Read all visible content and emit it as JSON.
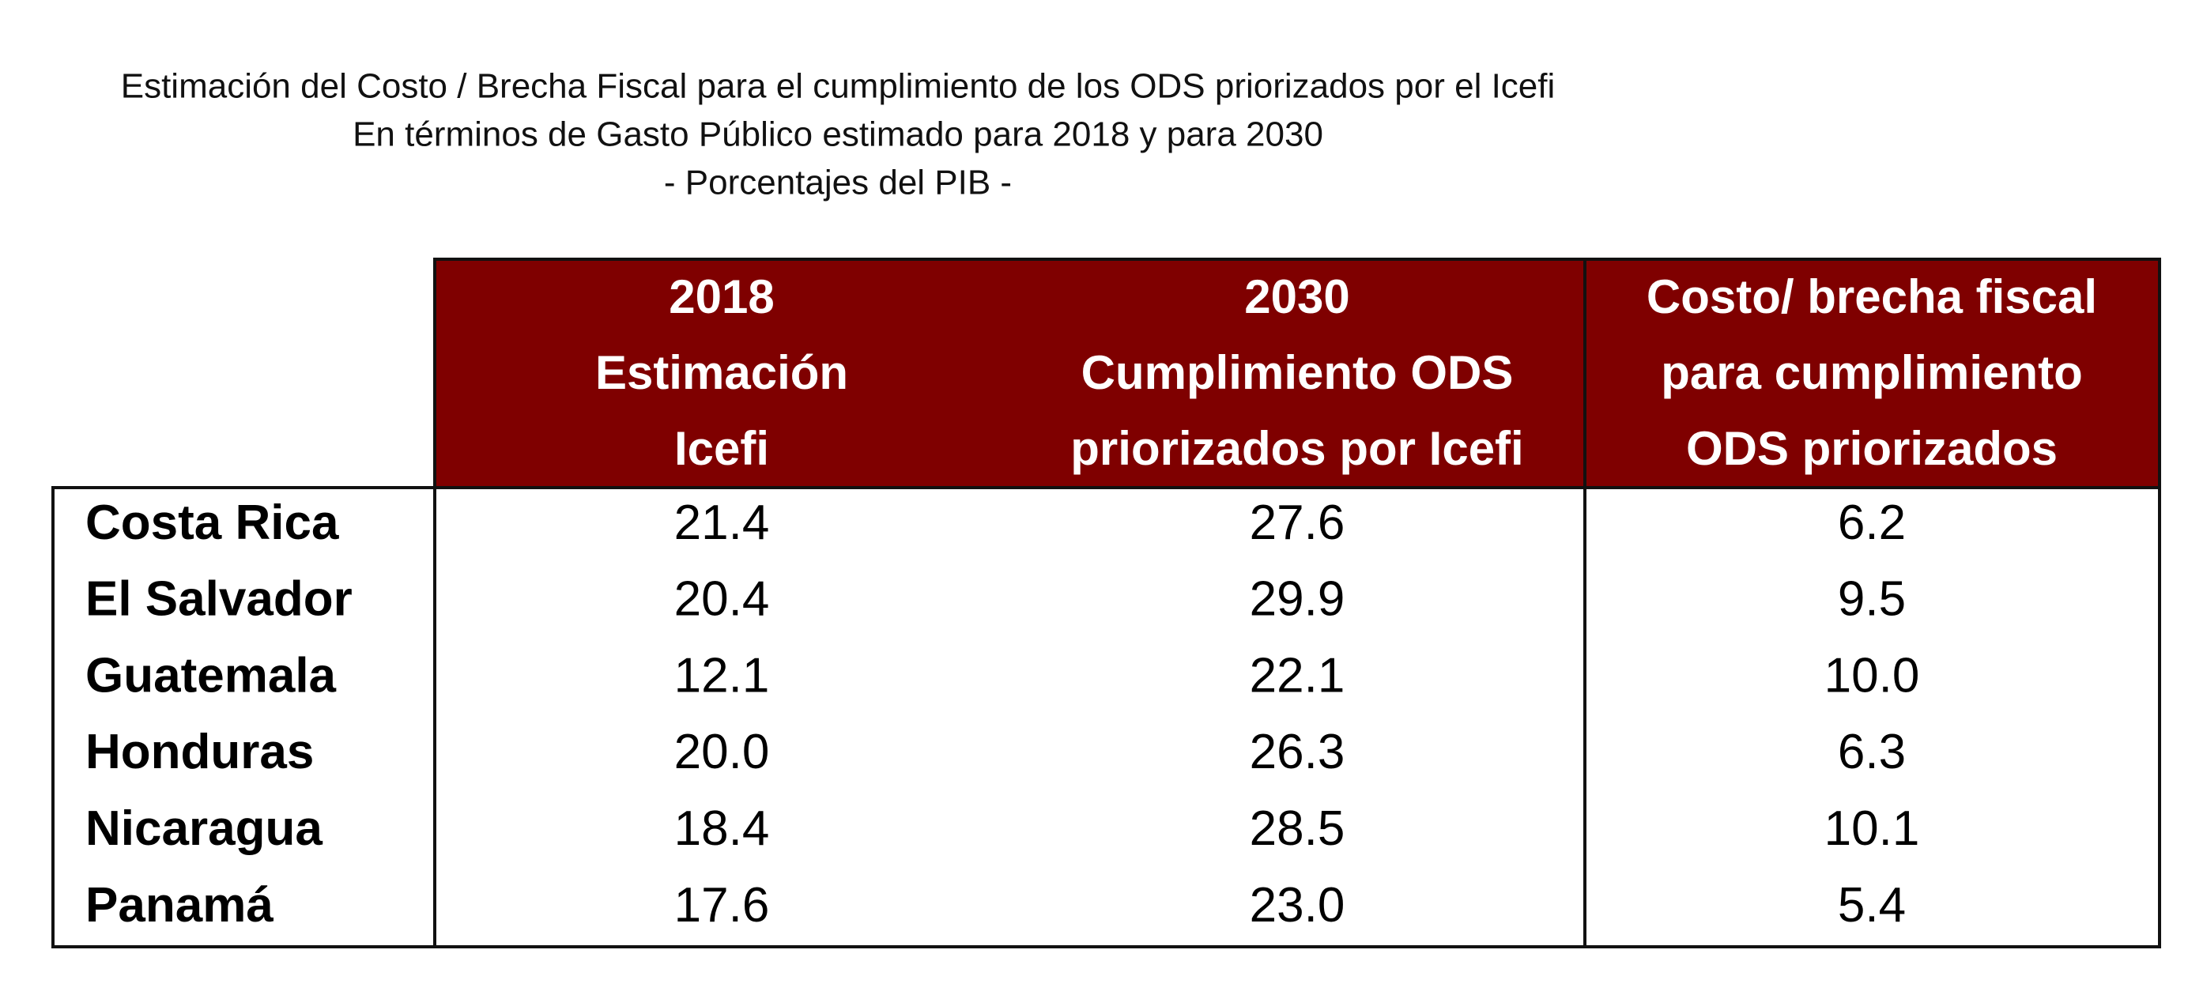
{
  "header": {
    "title_lines": [
      "Estimación del Costo / Brecha Fiscal para el cumplimiento de los ODS priorizados por el Icefi",
      "En términos de Gasto Público estimado para 2018 y para 2030",
      "- Porcentajes del PIB -"
    ]
  },
  "table": {
    "columns": [
      {
        "lines": [
          "2018",
          "Estimación",
          "Icefi"
        ]
      },
      {
        "lines": [
          "2030",
          "Cumplimiento ODS",
          "priorizados por Icefi"
        ]
      },
      {
        "lines": [
          "Costo/ brecha fiscal",
          "para cumplimiento",
          "ODS priorizados"
        ]
      }
    ],
    "rows": [
      {
        "label": "Costa Rica",
        "values": [
          "21.4",
          "27.6",
          "6.2"
        ]
      },
      {
        "label": "El Salvador",
        "values": [
          "20.4",
          "29.9",
          "9.5"
        ]
      },
      {
        "label": "Guatemala",
        "values": [
          "12.1",
          "22.1",
          "10.0"
        ]
      },
      {
        "label": "Honduras",
        "values": [
          "20.0",
          "26.3",
          "6.3"
        ]
      },
      {
        "label": "Nicaragua",
        "values": [
          "18.4",
          "28.5",
          "10.1"
        ]
      },
      {
        "label": "Panamá",
        "values": [
          "17.6",
          "23.0",
          "5.4"
        ]
      }
    ]
  }
}
